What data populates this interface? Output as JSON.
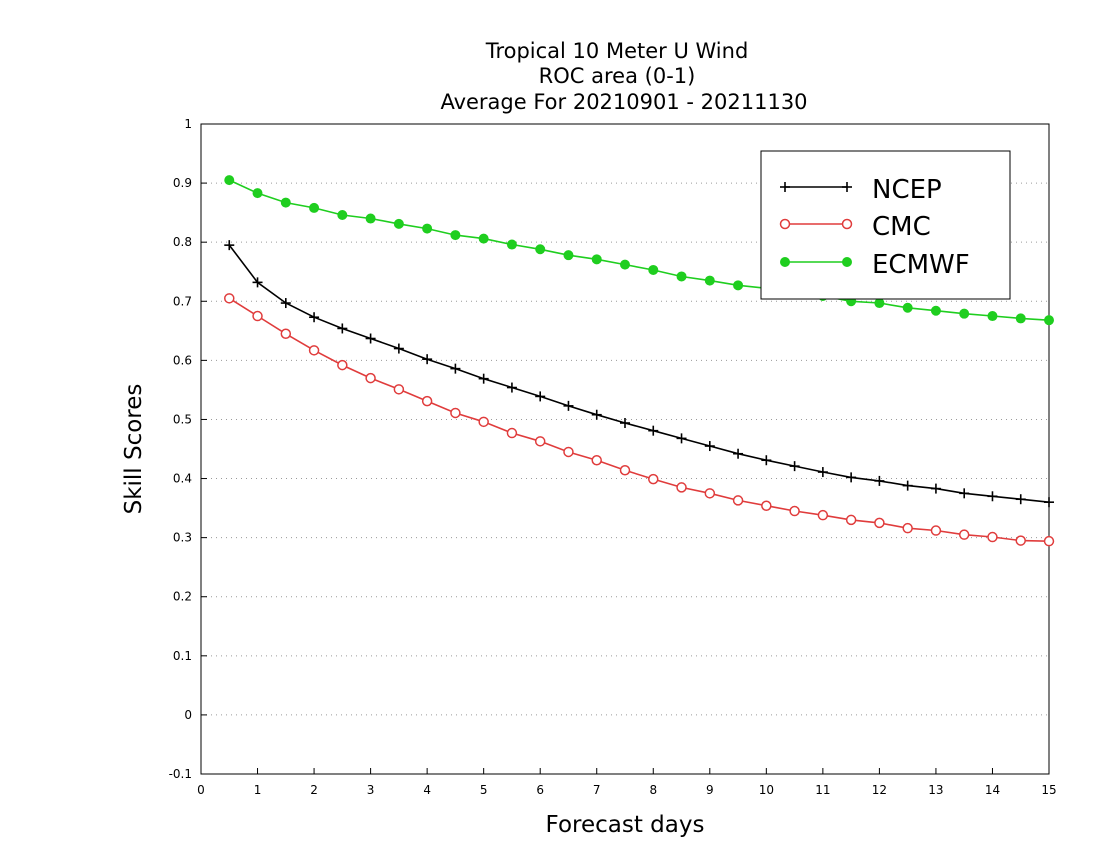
{
  "chart_data": {
    "type": "line",
    "title": [
      "Tropical 10 Meter U Wind",
      "ROC area (0-1)",
      "Average For 20210901 - 20211130"
    ],
    "xlabel": "Forecast days",
    "ylabel": "Skill Scores",
    "xlim": [
      0,
      15
    ],
    "ylim": [
      -0.1,
      1
    ],
    "xticks": [
      0,
      1,
      2,
      3,
      4,
      5,
      6,
      7,
      8,
      9,
      10,
      11,
      12,
      13,
      14,
      15
    ],
    "yticks": [
      -0.1,
      0,
      0.1,
      0.2,
      0.3,
      0.4,
      0.5,
      0.6,
      0.7,
      0.8,
      0.9,
      1
    ],
    "ytick_labels": [
      "-0.1",
      "0",
      "0.1",
      "0.2",
      "0.3",
      "0.4",
      "0.5",
      "0.6",
      "0.7",
      "0.8",
      "0.9",
      "1"
    ],
    "grid": "horizontal dotted",
    "legend_position": "top-right",
    "x": [
      0.5,
      1.0,
      1.5,
      2.0,
      2.5,
      3.0,
      3.5,
      4.0,
      4.5,
      5.0,
      5.5,
      6.0,
      6.5,
      7.0,
      7.5,
      8.0,
      8.5,
      9.0,
      9.5,
      10.0,
      10.5,
      11.0,
      11.5,
      12.0,
      12.5,
      13.0,
      13.5,
      14.0,
      14.5,
      15.0
    ],
    "series": [
      {
        "name": "NCEP",
        "color": "#000000",
        "marker": "plus",
        "values": [
          0.795,
          0.732,
          0.697,
          0.673,
          0.654,
          0.637,
          0.62,
          0.602,
          0.586,
          0.569,
          0.554,
          0.539,
          0.523,
          0.508,
          0.494,
          0.481,
          0.468,
          0.455,
          0.442,
          0.431,
          0.421,
          0.411,
          0.402,
          0.396,
          0.388,
          0.383,
          0.375,
          0.37,
          0.365,
          0.36
        ]
      },
      {
        "name": "CMC",
        "color": "#e03c3c",
        "marker": "open-circle",
        "values": [
          0.705,
          0.675,
          0.645,
          0.617,
          0.592,
          0.57,
          0.551,
          0.531,
          0.511,
          0.496,
          0.477,
          0.463,
          0.445,
          0.431,
          0.414,
          0.399,
          0.385,
          0.375,
          0.363,
          0.354,
          0.345,
          0.338,
          0.33,
          0.325,
          0.316,
          0.312,
          0.305,
          0.301,
          0.295,
          0.294
        ]
      },
      {
        "name": "ECMWF",
        "color": "#1fce1f",
        "marker": "filled-circle",
        "values": [
          0.905,
          0.883,
          0.867,
          0.858,
          0.846,
          0.84,
          0.831,
          0.823,
          0.812,
          0.806,
          0.796,
          0.788,
          0.778,
          0.771,
          0.762,
          0.753,
          0.742,
          0.735,
          0.727,
          0.722,
          0.714,
          0.709,
          0.7,
          0.697,
          0.689,
          0.684,
          0.679,
          0.675,
          0.671,
          0.668
        ]
      }
    ]
  }
}
